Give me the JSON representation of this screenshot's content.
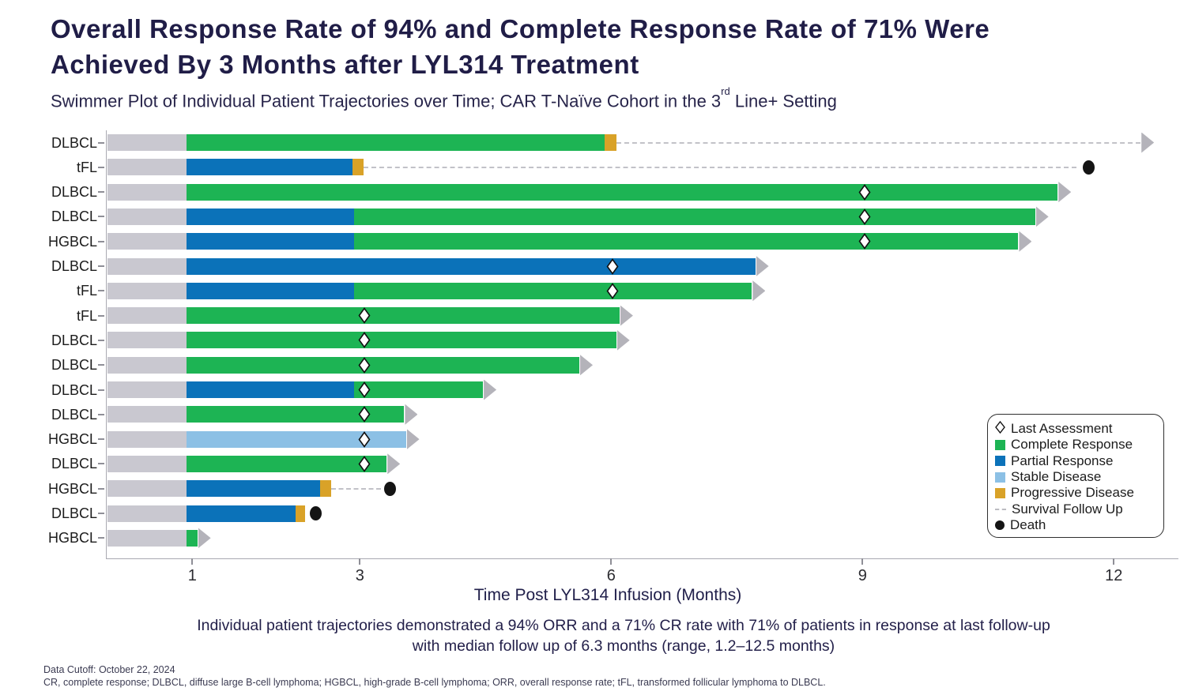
{
  "slide": {
    "title_line1": "Overall Response Rate of 94% and Complete Response Rate of 71% Were",
    "title_line2": "Achieved By 3 Months after LYL314 Treatment",
    "subtitle_pre": "Swimmer Plot of Individual Patient Trajectories over Time; CAR T-Naïve Cohort in the 3",
    "subtitle_sup": "rd",
    "subtitle_post": " Line+ Setting",
    "caption_line1": "Individual patient trajectories demonstrated a 94% ORR and a 71% CR rate with 71% of patients in response at last follow-up",
    "caption_line2": "with median follow up of 6.3 months (range, 1.2–12.5 months)",
    "footnote_line1": "Data Cutoff: October 22, 2024",
    "footnote_line2": "CR, complete response; DLBCL, diffuse large B-cell lymphoma; HGBCL, high-grade B-cell lymphoma; ORR, overall response rate; tFL, transformed follicular lymphoma to DLBCL."
  },
  "colors": {
    "cr": "#1db454",
    "pr": "#0b72b9",
    "sd": "#8cc0e5",
    "pd": "#d9a228",
    "lead": "#c9c8d0",
    "arrow": "#b4b3ba",
    "dash": "#c2c2c8",
    "death": "#141414",
    "axis": "#a9a9b1",
    "title_navy": "#201d47"
  },
  "chart_data": {
    "type": "swimmer",
    "xlabel": "Time Post LYL314 Infusion (Months)",
    "xticks": [
      1,
      3,
      6,
      9,
      12
    ],
    "xlim": [
      0,
      12.75
    ],
    "lead_end": 0.93,
    "legend": [
      {
        "marker": "diamond",
        "label": "Last Assessment"
      },
      {
        "marker": "square",
        "color": "#1db454",
        "label": "Complete Response"
      },
      {
        "marker": "square",
        "color": "#0b72b9",
        "label": "Partial Response"
      },
      {
        "marker": "square",
        "color": "#8cc0e5",
        "label": "Stable Disease"
      },
      {
        "marker": "square",
        "color": "#d9a228",
        "label": "Progressive Disease"
      },
      {
        "marker": "dash",
        "label": "Survival Follow Up"
      },
      {
        "marker": "circle",
        "label": "Death"
      }
    ],
    "patients": [
      {
        "label": "DLBCL",
        "segments": [
          {
            "type": "cr",
            "start": 0.93,
            "end": 5.92
          },
          {
            "type": "pd",
            "start": 5.92,
            "end": 6.06
          }
        ],
        "dash": {
          "start": 6.06,
          "end": 12.32
        },
        "arrow_at": 12.32,
        "diamond": null,
        "death": null
      },
      {
        "label": "tFL",
        "segments": [
          {
            "type": "pr",
            "start": 0.93,
            "end": 2.91
          },
          {
            "type": "pd",
            "start": 2.91,
            "end": 3.04
          }
        ],
        "dash": {
          "start": 3.04,
          "end": 11.55
        },
        "arrow_at": null,
        "diamond": null,
        "death": 11.7
      },
      {
        "label": "DLBCL",
        "segments": [
          {
            "type": "cr",
            "start": 0.93,
            "end": 11.33
          }
        ],
        "dash": null,
        "arrow_at": 11.33,
        "diamond": 9.03,
        "death": null
      },
      {
        "label": "DLBCL",
        "segments": [
          {
            "type": "pr",
            "start": 0.93,
            "end": 2.93
          },
          {
            "type": "cr",
            "start": 2.93,
            "end": 11.06
          }
        ],
        "dash": null,
        "arrow_at": 11.06,
        "diamond": 9.03,
        "death": null
      },
      {
        "label": "HGBCL",
        "segments": [
          {
            "type": "pr",
            "start": 0.93,
            "end": 2.93
          },
          {
            "type": "cr",
            "start": 2.93,
            "end": 10.86
          }
        ],
        "dash": null,
        "arrow_at": 10.86,
        "diamond": 9.03,
        "death": null
      },
      {
        "label": "DLBCL",
        "segments": [
          {
            "type": "pr",
            "start": 0.93,
            "end": 7.72
          }
        ],
        "dash": null,
        "arrow_at": 7.72,
        "diamond": 6.02,
        "death": null
      },
      {
        "label": "tFL",
        "segments": [
          {
            "type": "pr",
            "start": 0.93,
            "end": 2.93
          },
          {
            "type": "cr",
            "start": 2.93,
            "end": 7.68
          }
        ],
        "dash": null,
        "arrow_at": 7.68,
        "diamond": 6.02,
        "death": null
      },
      {
        "label": "tFL",
        "segments": [
          {
            "type": "cr",
            "start": 0.93,
            "end": 6.1
          }
        ],
        "dash": null,
        "arrow_at": 6.1,
        "diamond": 3.05,
        "death": null
      },
      {
        "label": "DLBCL",
        "segments": [
          {
            "type": "cr",
            "start": 0.93,
            "end": 6.06
          }
        ],
        "dash": null,
        "arrow_at": 6.06,
        "diamond": 3.05,
        "death": null
      },
      {
        "label": "DLBCL",
        "segments": [
          {
            "type": "cr",
            "start": 0.93,
            "end": 5.62
          }
        ],
        "dash": null,
        "arrow_at": 5.62,
        "diamond": 3.05,
        "death": null
      },
      {
        "label": "DLBCL",
        "segments": [
          {
            "type": "pr",
            "start": 0.93,
            "end": 2.93
          },
          {
            "type": "cr",
            "start": 2.93,
            "end": 4.47
          }
        ],
        "dash": null,
        "arrow_at": 4.47,
        "diamond": 3.05,
        "death": null
      },
      {
        "label": "DLBCL",
        "segments": [
          {
            "type": "cr",
            "start": 0.93,
            "end": 3.53
          }
        ],
        "dash": null,
        "arrow_at": 3.53,
        "diamond": 3.05,
        "death": null
      },
      {
        "label": "HGBCL",
        "segments": [
          {
            "type": "sd",
            "start": 0.93,
            "end": 3.55
          }
        ],
        "dash": null,
        "arrow_at": 3.55,
        "diamond": 3.05,
        "death": null
      },
      {
        "label": "DLBCL",
        "segments": [
          {
            "type": "cr",
            "start": 0.93,
            "end": 3.32
          }
        ],
        "dash": null,
        "arrow_at": 3.32,
        "diamond": 3.05,
        "death": null
      },
      {
        "label": "HGBCL",
        "segments": [
          {
            "type": "pr",
            "start": 0.93,
            "end": 2.53
          },
          {
            "type": "pd",
            "start": 2.53,
            "end": 2.66
          }
        ],
        "dash": {
          "start": 2.66,
          "end": 3.25
        },
        "arrow_at": null,
        "diamond": null,
        "death": 3.36
      },
      {
        "label": "DLBCL",
        "segments": [
          {
            "type": "pr",
            "start": 0.93,
            "end": 2.23
          },
          {
            "type": "pd",
            "start": 2.23,
            "end": 2.35
          }
        ],
        "dash": null,
        "arrow_at": null,
        "diamond": null,
        "death": 2.47
      },
      {
        "label": "HGBCL",
        "segments": [
          {
            "type": "cr",
            "start": 0.93,
            "end": 1.06
          }
        ],
        "dash": null,
        "arrow_at": 1.06,
        "diamond": null,
        "death": null
      }
    ]
  }
}
